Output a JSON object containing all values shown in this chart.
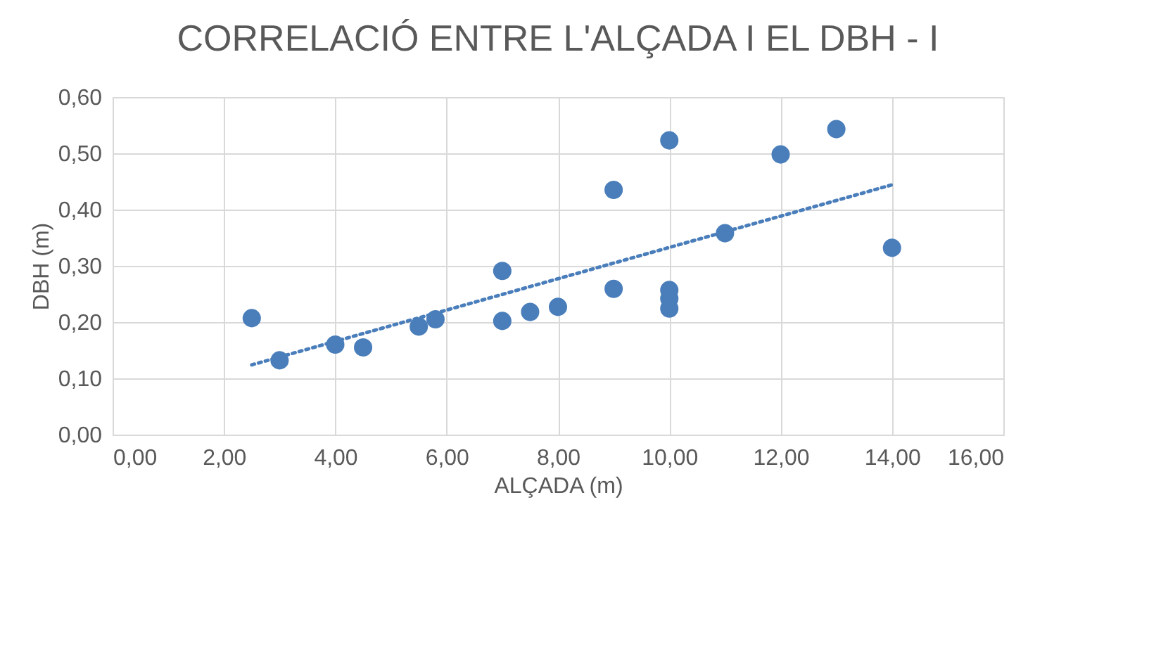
{
  "chart_data": {
    "type": "scatter",
    "title": "CORRELACIÓ ENTRE L'ALÇADA I EL DBH - I",
    "xlabel": "ALÇADA (m)",
    "ylabel": "DBH (m)",
    "grid": true,
    "marker": "circle",
    "xlim": [
      0,
      16
    ],
    "ylim": [
      0,
      0.6
    ],
    "xticks": [
      {
        "value": 0,
        "label": "0,00"
      },
      {
        "value": 2,
        "label": "2,00"
      },
      {
        "value": 4,
        "label": "4,00"
      },
      {
        "value": 6,
        "label": "6,00"
      },
      {
        "value": 8,
        "label": "8,00"
      },
      {
        "value": 10,
        "label": "10,00"
      },
      {
        "value": 12,
        "label": "12,00"
      },
      {
        "value": 14,
        "label": "14,00"
      },
      {
        "value": 16,
        "label": "16,00"
      }
    ],
    "yticks": [
      {
        "value": 0,
        "label": "0,00"
      },
      {
        "value": 0.1,
        "label": "0,10"
      },
      {
        "value": 0.2,
        "label": "0,20"
      },
      {
        "value": 0.3,
        "label": "0,30"
      },
      {
        "value": 0.4,
        "label": "0,40"
      },
      {
        "value": 0.5,
        "label": "0,50"
      },
      {
        "value": 0.6,
        "label": "0,60"
      }
    ],
    "series": [
      {
        "color": "#4a7ebb",
        "x": [
          2.5,
          3,
          4,
          4.5,
          5.5,
          5.8,
          7,
          7,
          7.5,
          8,
          9,
          9,
          10,
          10,
          10,
          10,
          11,
          12,
          13,
          14
        ],
        "values": [
          0.207,
          0.132,
          0.16,
          0.155,
          0.192,
          0.205,
          0.291,
          0.202,
          0.218,
          0.227,
          0.435,
          0.259,
          0.523,
          0.257,
          0.242,
          0.224,
          0.358,
          0.498,
          0.543,
          0.332
        ]
      },
      {
        "type": "line",
        "color": "#4a7ebb",
        "line_style": "dotted",
        "marker": "none",
        "x": [
          2.5,
          14
        ],
        "values": [
          0.124,
          0.444
        ]
      }
    ]
  }
}
